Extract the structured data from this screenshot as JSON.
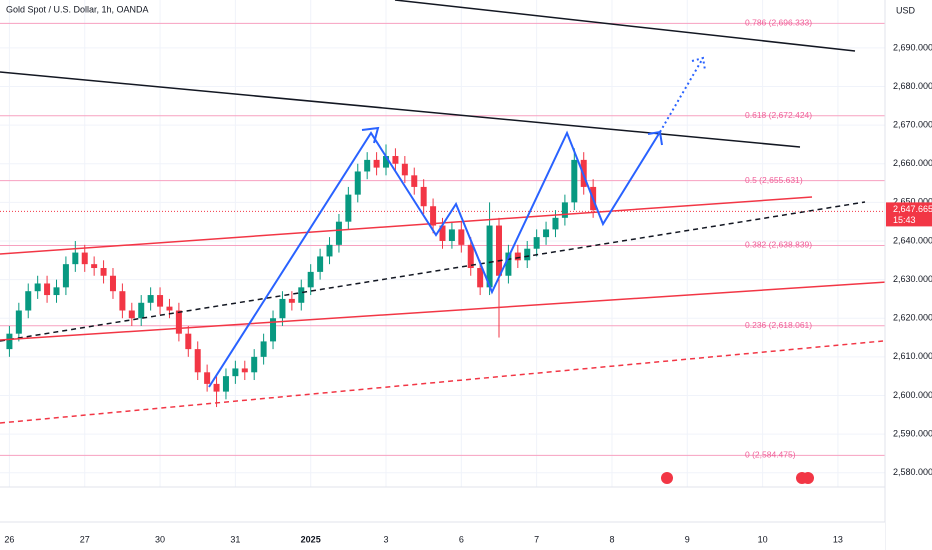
{
  "chart_data": {
    "type": "candlestick",
    "title": "Gold Spot / U.S. Dollar, 1h, OANDA",
    "currency": "USD",
    "last_price": {
      "value": 2647.665,
      "label": "2,647.665"
    },
    "countdown": "15:43",
    "up_color": "#089981",
    "down_color": "#f23645",
    "xlim": [
      -1,
      93
    ],
    "xticks": [
      {
        "value": 0,
        "label": "26"
      },
      {
        "value": 8,
        "label": "27"
      },
      {
        "value": 16,
        "label": "30"
      },
      {
        "value": 24,
        "label": "31"
      },
      {
        "value": 32,
        "label": "2025"
      },
      {
        "value": 40,
        "label": "3"
      },
      {
        "value": 48,
        "label": "6"
      },
      {
        "value": 56,
        "label": "7"
      },
      {
        "value": 64,
        "label": "8"
      },
      {
        "value": 72,
        "label": "9"
      },
      {
        "value": 80,
        "label": "10"
      },
      {
        "value": 88,
        "label": "13"
      }
    ],
    "ylim": [
      2576.3,
      2702.4
    ],
    "yticks": [
      {
        "value": 2580,
        "label": "2,580.000"
      },
      {
        "value": 2590,
        "label": "2,590.000"
      },
      {
        "value": 2600,
        "label": "2,600.000"
      },
      {
        "value": 2610,
        "label": "2,610.000"
      },
      {
        "value": 2620,
        "label": "2,620.000"
      },
      {
        "value": 2630,
        "label": "2,630.000"
      },
      {
        "value": 2640,
        "label": "2,640.000"
      },
      {
        "value": 2650,
        "label": "2,650.000"
      },
      {
        "value": 2660,
        "label": "2,660.000"
      },
      {
        "value": 2670,
        "label": "2,670.000"
      },
      {
        "value": 2680,
        "label": "2,680.000"
      },
      {
        "value": 2690,
        "label": "2,690.000"
      }
    ],
    "fib_levels": [
      {
        "value": 2696.333,
        "label": "0.786 (2,696.333)"
      },
      {
        "value": 2672.424,
        "label": "0.618 (2,672.424)"
      },
      {
        "value": 2655.631,
        "label": "0.5 (2,655.631)"
      },
      {
        "value": 2638.839,
        "label": "0.382 (2,638.839)"
      },
      {
        "value": 2618.061,
        "label": "0.236 (2,618.061)"
      },
      {
        "value": 2584.475,
        "label": "0 (2,584.475)"
      }
    ],
    "open": [
      2612,
      2616,
      2622,
      2627,
      2629,
      2626,
      2628,
      2634,
      2637,
      2634,
      2633,
      2631,
      2627,
      2622,
      2620,
      2624,
      2626,
      2623,
      2622,
      2616,
      2612,
      2606,
      2603,
      2601,
      2605,
      2607,
      2606,
      2610,
      2614,
      2620,
      2625,
      2624,
      2628,
      2632,
      2636,
      2639,
      2645,
      2652,
      2658,
      2661,
      2659,
      2662,
      2660,
      2657,
      2654,
      2649,
      2644,
      2640,
      2643,
      2639,
      2633,
      2628,
      2644,
      2631,
      2637,
      2635,
      2638,
      2641,
      2643,
      2646,
      2650,
      2661,
      2654
    ],
    "high": [
      2618,
      2624,
      2629,
      2631,
      2631,
      2630,
      2636,
      2640,
      2639,
      2636,
      2635,
      2633,
      2629,
      2624,
      2626,
      2628,
      2628,
      2625,
      2624,
      2618,
      2614,
      2608,
      2605,
      2607,
      2609,
      2609,
      2612,
      2616,
      2622,
      2627,
      2627,
      2630,
      2634,
      2638,
      2641,
      2647,
      2654,
      2660,
      2663,
      2663,
      2665,
      2664,
      2662,
      2659,
      2656,
      2651,
      2646,
      2645,
      2645,
      2641,
      2635,
      2650,
      2646,
      2639,
      2639,
      2640,
      2643,
      2645,
      2648,
      2652,
      2664,
      2663,
      2656
    ],
    "low": [
      2610,
      2614,
      2620,
      2625,
      2624,
      2624,
      2626,
      2632,
      2632,
      2631,
      2629,
      2625,
      2620,
      2618,
      2618,
      2622,
      2621,
      2620,
      2614,
      2610,
      2604,
      2601,
      2597,
      2599,
      2603,
      2604,
      2604,
      2608,
      2612,
      2618,
      2622,
      2622,
      2626,
      2630,
      2634,
      2637,
      2643,
      2650,
      2656,
      2657,
      2657,
      2658,
      2655,
      2652,
      2647,
      2642,
      2638,
      2638,
      2637,
      2631,
      2626,
      2626,
      2615,
      2629,
      2633,
      2633,
      2636,
      2639,
      2641,
      2644,
      2648,
      2652,
      2646
    ],
    "close": [
      2616,
      2622,
      2627,
      2629,
      2626,
      2628,
      2634,
      2637,
      2634,
      2633,
      2631,
      2627,
      2622,
      2620,
      2624,
      2626,
      2623,
      2622,
      2616,
      2612,
      2606,
      2603,
      2601,
      2605,
      2607,
      2606,
      2610,
      2614,
      2620,
      2625,
      2624,
      2628,
      2632,
      2636,
      2639,
      2645,
      2652,
      2658,
      2661,
      2659,
      2662,
      2660,
      2657,
      2654,
      2649,
      2644,
      2640,
      2643,
      2639,
      2633,
      2628,
      2644,
      2631,
      2637,
      2635,
      2638,
      2641,
      2643,
      2646,
      2650,
      2661,
      2654,
      2648
    ]
  }
}
